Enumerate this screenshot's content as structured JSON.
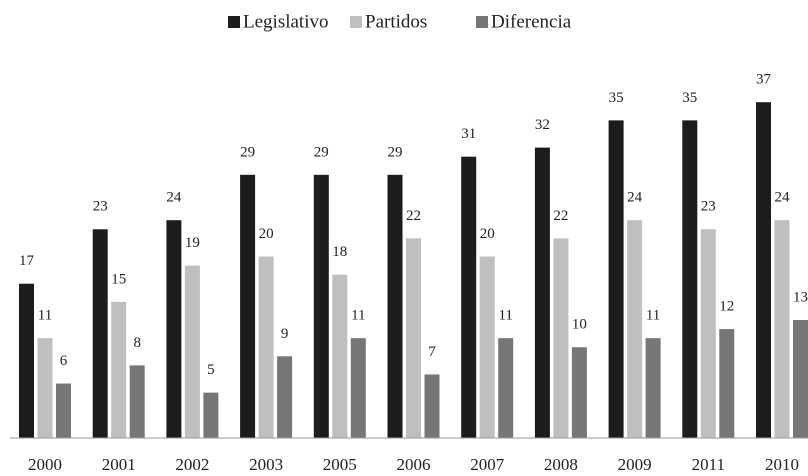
{
  "chart_data": {
    "type": "bar",
    "categories": [
      "2000",
      "2001",
      "2002",
      "2003",
      "2005",
      "2006",
      "2007",
      "2008",
      "2009",
      "2011",
      "2010"
    ],
    "series": [
      {
        "name": "Legislativo",
        "color": "#1c1c1c",
        "values": [
          17,
          23,
          24,
          29,
          29,
          29,
          31,
          32,
          35,
          35,
          37
        ]
      },
      {
        "name": "Partidos",
        "color": "#bfbfbf",
        "values": [
          11,
          15,
          19,
          20,
          18,
          22,
          20,
          22,
          24,
          23,
          24
        ]
      },
      {
        "name": "Diferencia",
        "color": "#767676",
        "values": [
          6,
          8,
          5,
          9,
          11,
          7,
          11,
          10,
          11,
          12,
          13
        ]
      }
    ],
    "ylim": [
      0,
      40
    ]
  }
}
